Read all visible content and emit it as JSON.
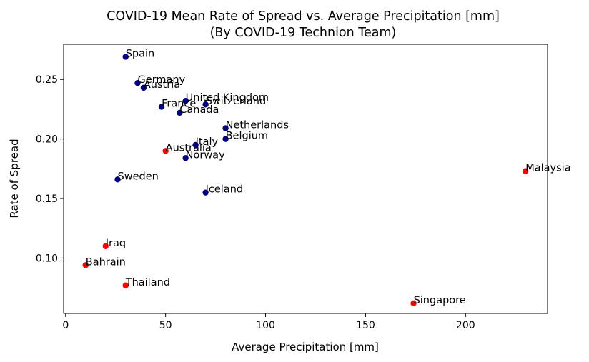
{
  "chart_data": {
    "type": "scatter",
    "title": "COVID-19 Mean Rate of Spread vs. Average Precipitation [mm]",
    "subtitle": "(By COVID-19 Technion Team)",
    "xlabel": "Average Precipitation [mm]",
    "ylabel": "Rate of Spread",
    "xlim": [
      -1,
      241
    ],
    "ylim": [
      0.0535,
      0.2795
    ],
    "xticks": [
      0,
      50,
      100,
      150,
      200
    ],
    "yticks": [
      0.1,
      0.15,
      0.2,
      0.25
    ],
    "xtick_labels": [
      "0",
      "50",
      "100",
      "150",
      "200"
    ],
    "ytick_labels": [
      "0.10",
      "0.15",
      "0.20",
      "0.25"
    ],
    "grid": false,
    "colors": {
      "navy": "#000080",
      "red": "#ff0000"
    },
    "points": [
      {
        "label": "Spain",
        "x": 30,
        "y": 0.269,
        "color": "navy"
      },
      {
        "label": "Germany",
        "x": 36,
        "y": 0.247,
        "color": "navy"
      },
      {
        "label": "Austria",
        "x": 39,
        "y": 0.243,
        "color": "navy"
      },
      {
        "label": "United Kingdom",
        "x": 60,
        "y": 0.232,
        "color": "navy"
      },
      {
        "label": "Switzerland",
        "x": 70,
        "y": 0.229,
        "color": "navy"
      },
      {
        "label": "France",
        "x": 48,
        "y": 0.227,
        "color": "navy"
      },
      {
        "label": "Canada",
        "x": 57,
        "y": 0.222,
        "color": "navy"
      },
      {
        "label": "Netherlands",
        "x": 80,
        "y": 0.209,
        "color": "navy"
      },
      {
        "label": "Belgium",
        "x": 80,
        "y": 0.2,
        "color": "navy"
      },
      {
        "label": "Italy",
        "x": 65,
        "y": 0.195,
        "color": "navy"
      },
      {
        "label": "Australia",
        "x": 50,
        "y": 0.19,
        "color": "red"
      },
      {
        "label": "Norway",
        "x": 60,
        "y": 0.184,
        "color": "navy"
      },
      {
        "label": "Malaysia",
        "x": 230,
        "y": 0.173,
        "color": "red"
      },
      {
        "label": "Sweden",
        "x": 26,
        "y": 0.166,
        "color": "navy"
      },
      {
        "label": "Iceland",
        "x": 70,
        "y": 0.155,
        "color": "navy"
      },
      {
        "label": "Iraq",
        "x": 20,
        "y": 0.11,
        "color": "red"
      },
      {
        "label": "Bahrain",
        "x": 10,
        "y": 0.094,
        "color": "red"
      },
      {
        "label": "Thailand",
        "x": 30,
        "y": 0.077,
        "color": "red"
      },
      {
        "label": "Singapore",
        "x": 174,
        "y": 0.062,
        "color": "red"
      }
    ]
  }
}
